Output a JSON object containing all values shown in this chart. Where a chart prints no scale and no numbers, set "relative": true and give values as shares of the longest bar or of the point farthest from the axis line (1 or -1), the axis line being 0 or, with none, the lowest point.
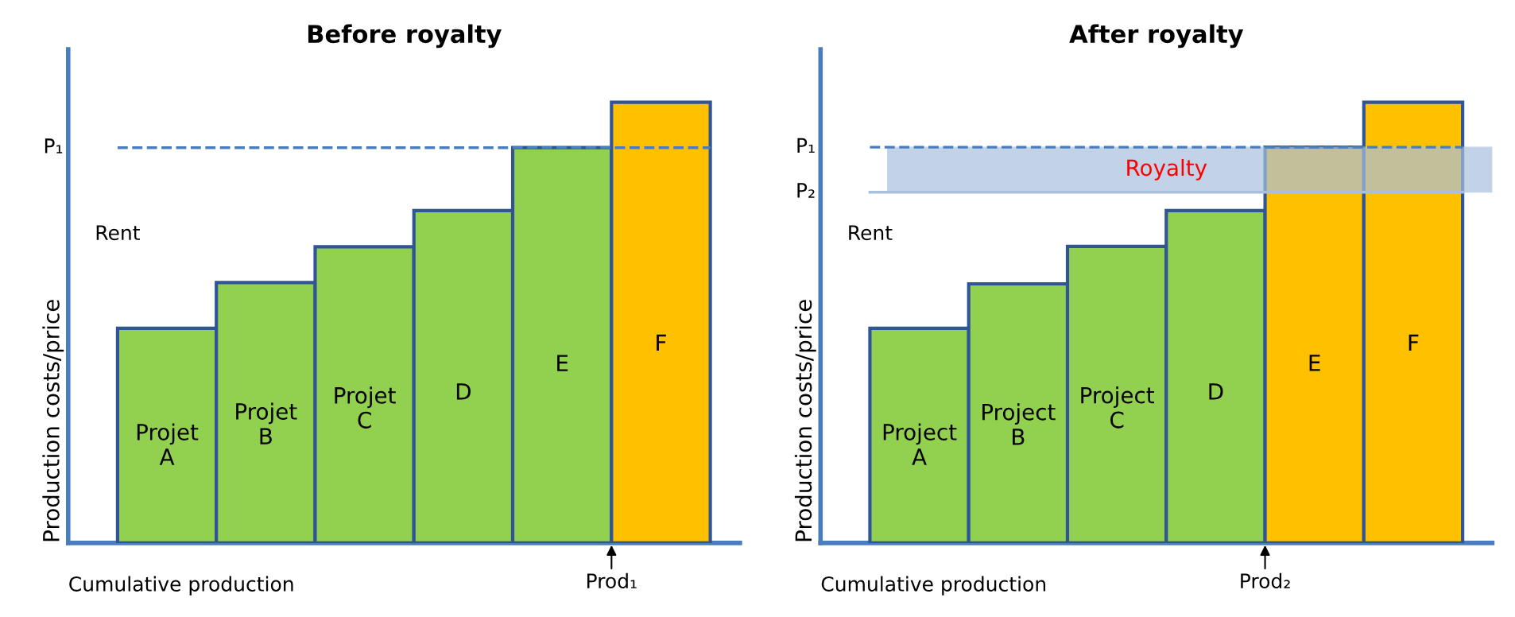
{
  "chart_data": [
    {
      "type": "bar",
      "title": "Before royalty",
      "xlabel": "Cumulative production",
      "ylabel": "Production costs/price",
      "relative": true,
      "categories": [
        "Projet\nA",
        "Projet\nB",
        "Projet\nC",
        "D",
        "E",
        "F"
      ],
      "values": [
        0.487,
        0.591,
        0.672,
        0.754,
        0.897,
        1
      ],
      "colors": [
        "#92d050",
        "#92d050",
        "#92d050",
        "#92d050",
        "#92d050",
        "#ffc000"
      ],
      "ref_lines": [
        {
          "axis": "y",
          "value": 0.897,
          "label": "P₁",
          "color": "#4a7cc0",
          "line_style": "dashed"
        }
      ],
      "annotations": [
        "Rent",
        "Prod₁"
      ],
      "legend": false
    },
    {
      "type": "bar",
      "title": "After royalty",
      "xlabel": "Cumulative production",
      "ylabel": "Production costs/price",
      "relative": true,
      "categories": [
        "Project\nA",
        "Project\nB",
        "Project\nC",
        "D",
        "E",
        "F"
      ],
      "values": [
        0.487,
        0.588,
        0.673,
        0.754,
        0.898,
        1
      ],
      "colors": [
        "#92d050",
        "#92d050",
        "#92d050",
        "#92d050",
        "#ffc000",
        "#ffc000"
      ],
      "ref_lines": [
        {
          "axis": "y",
          "value": 0.898,
          "label": "P₁",
          "color": "#4a7cc0",
          "line_style": "dashed"
        },
        {
          "axis": "y",
          "value": 0.796,
          "label": "P₂",
          "color": "#a9c0dd",
          "line_style": "solid"
        }
      ],
      "bands": [
        {
          "axis": "y",
          "from": 0.796,
          "to": 0.898,
          "label": "Royalty",
          "color": "#a9c0dd"
        }
      ],
      "annotations": [
        "Rent",
        "Prod₂"
      ],
      "legend": false
    }
  ]
}
